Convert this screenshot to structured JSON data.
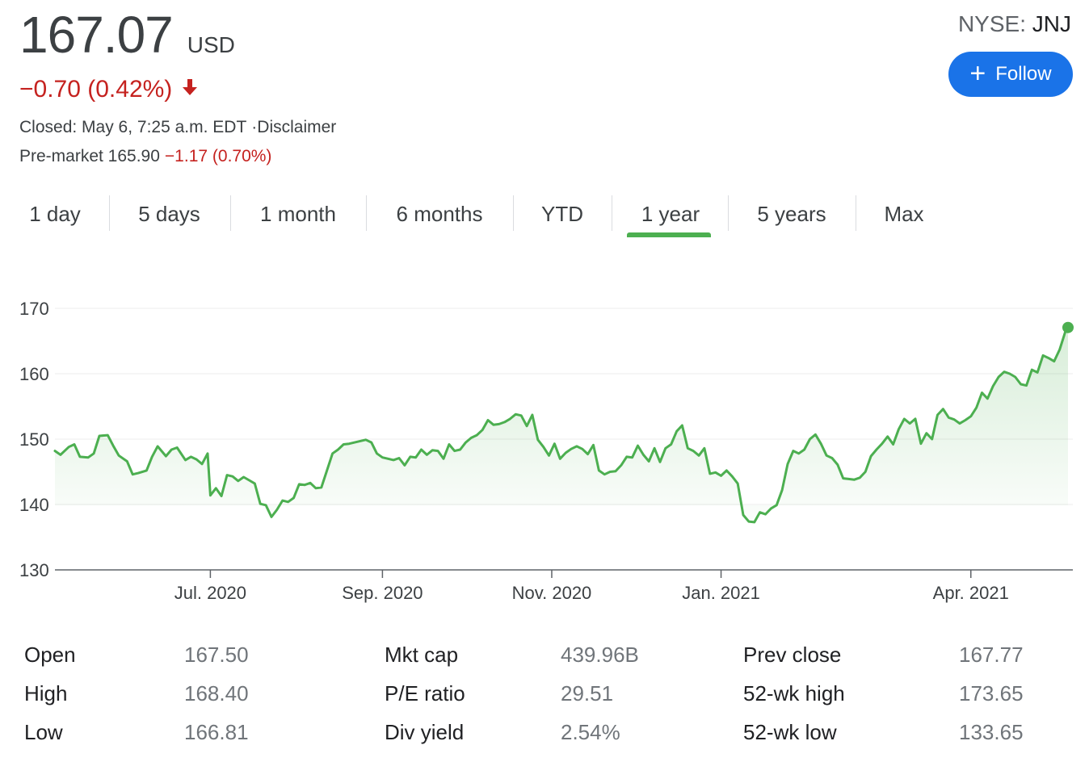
{
  "quote": {
    "price": "167.07",
    "currency": "USD",
    "change": "−0.70 (0.42%)",
    "closed_text": "Closed: May 6, 7:25 a.m. EDT",
    "disclaimer": "·Disclaimer",
    "premarket_label": "Pre-market 165.90",
    "premarket_change": "−1.17 (0.70%)",
    "exchange": "NYSE: ",
    "symbol": "JNJ",
    "follow_label": "Follow",
    "down_color": "#c5221f",
    "accent_color": "#1a73e8"
  },
  "tabs": [
    {
      "label": "1 day",
      "active": false
    },
    {
      "label": "5 days",
      "active": false
    },
    {
      "label": "1 month",
      "active": false
    },
    {
      "label": "6 months",
      "active": false
    },
    {
      "label": "YTD",
      "active": false
    },
    {
      "label": "1 year",
      "active": true
    },
    {
      "label": "5 years",
      "active": false
    },
    {
      "label": "Max",
      "active": false
    }
  ],
  "chart_data": {
    "type": "area",
    "line_color": "#4caf50",
    "ylim": [
      130,
      170
    ],
    "yticks": [
      "170",
      "160",
      "150",
      "140",
      "130"
    ],
    "xticks": [
      {
        "label": "Jul. 2020",
        "x": "2020-07-01"
      },
      {
        "label": "Sep. 2020",
        "x": "2020-09-01"
      },
      {
        "label": "Nov. 2020",
        "x": "2020-11-01"
      },
      {
        "label": "Jan. 2021",
        "x": "2021-01-01"
      },
      {
        "label": "Apr. 2021",
        "x": "2021-04-01"
      }
    ],
    "xlim": [
      "2020-05-06",
      "2021-05-06"
    ],
    "grid": true,
    "series": [
      {
        "values": [
          [
            "2020-05-06",
            148.2
          ],
          [
            "2020-05-08",
            147.6
          ],
          [
            "2020-05-11",
            148.8
          ],
          [
            "2020-05-13",
            149.2
          ],
          [
            "2020-05-15",
            147.3
          ],
          [
            "2020-05-18",
            147.2
          ],
          [
            "2020-05-20",
            147.8
          ],
          [
            "2020-05-22",
            150.5
          ],
          [
            "2020-05-25",
            150.6
          ],
          [
            "2020-05-27",
            149.0
          ],
          [
            "2020-05-29",
            147.5
          ],
          [
            "2020-06-01",
            146.6
          ],
          [
            "2020-06-03",
            144.6
          ],
          [
            "2020-06-05",
            144.8
          ],
          [
            "2020-06-08",
            145.2
          ],
          [
            "2020-06-10",
            147.3
          ],
          [
            "2020-06-12",
            148.9
          ],
          [
            "2020-06-15",
            147.4
          ],
          [
            "2020-06-17",
            148.4
          ],
          [
            "2020-06-19",
            148.7
          ],
          [
            "2020-06-22",
            146.8
          ],
          [
            "2020-06-24",
            147.3
          ],
          [
            "2020-06-26",
            146.9
          ],
          [
            "2020-06-28",
            146.2
          ],
          [
            "2020-06-30",
            147.8
          ],
          [
            "2020-07-01",
            141.4
          ],
          [
            "2020-07-03",
            142.5
          ],
          [
            "2020-07-05",
            141.3
          ],
          [
            "2020-07-07",
            144.5
          ],
          [
            "2020-07-09",
            144.3
          ],
          [
            "2020-07-11",
            143.6
          ],
          [
            "2020-07-13",
            144.2
          ],
          [
            "2020-07-15",
            143.7
          ],
          [
            "2020-07-17",
            143.2
          ],
          [
            "2020-07-19",
            140.1
          ],
          [
            "2020-07-21",
            139.9
          ],
          [
            "2020-07-23",
            138.1
          ],
          [
            "2020-07-25",
            139.2
          ],
          [
            "2020-07-27",
            140.6
          ],
          [
            "2020-07-29",
            140.4
          ],
          [
            "2020-07-31",
            141.0
          ],
          [
            "2020-08-02",
            143.1
          ],
          [
            "2020-08-04",
            143.0
          ],
          [
            "2020-08-06",
            143.3
          ],
          [
            "2020-08-08",
            142.5
          ],
          [
            "2020-08-10",
            142.6
          ],
          [
            "2020-08-12",
            145.2
          ],
          [
            "2020-08-14",
            147.8
          ],
          [
            "2020-08-16",
            148.4
          ],
          [
            "2020-08-18",
            149.2
          ],
          [
            "2020-08-20",
            149.3
          ],
          [
            "2020-08-22",
            149.5
          ],
          [
            "2020-08-24",
            149.7
          ],
          [
            "2020-08-26",
            149.9
          ],
          [
            "2020-08-28",
            149.5
          ],
          [
            "2020-08-30",
            147.8
          ],
          [
            "2020-09-01",
            147.2
          ],
          [
            "2020-09-03",
            147.0
          ],
          [
            "2020-09-05",
            146.8
          ],
          [
            "2020-09-07",
            147.1
          ],
          [
            "2020-09-09",
            146.0
          ],
          [
            "2020-09-11",
            147.3
          ],
          [
            "2020-09-13",
            147.2
          ],
          [
            "2020-09-15",
            148.4
          ],
          [
            "2020-09-17",
            147.6
          ],
          [
            "2020-09-19",
            148.3
          ],
          [
            "2020-09-21",
            148.2
          ],
          [
            "2020-09-23",
            147.0
          ],
          [
            "2020-09-25",
            149.2
          ],
          [
            "2020-09-27",
            148.2
          ],
          [
            "2020-09-29",
            148.4
          ],
          [
            "2020-10-01",
            149.5
          ],
          [
            "2020-10-03",
            150.2
          ],
          [
            "2020-10-05",
            150.6
          ],
          [
            "2020-10-07",
            151.4
          ],
          [
            "2020-10-09",
            152.9
          ],
          [
            "2020-10-11",
            152.2
          ],
          [
            "2020-10-13",
            152.3
          ],
          [
            "2020-10-15",
            152.6
          ],
          [
            "2020-10-17",
            153.1
          ],
          [
            "2020-10-19",
            153.8
          ],
          [
            "2020-10-21",
            153.6
          ],
          [
            "2020-10-23",
            152.0
          ],
          [
            "2020-10-25",
            153.7
          ],
          [
            "2020-10-27",
            149.9
          ],
          [
            "2020-10-29",
            148.8
          ],
          [
            "2020-10-31",
            147.5
          ],
          [
            "2020-11-02",
            149.3
          ],
          [
            "2020-11-04",
            147.0
          ],
          [
            "2020-11-06",
            147.9
          ],
          [
            "2020-11-08",
            148.5
          ],
          [
            "2020-11-10",
            148.9
          ],
          [
            "2020-11-12",
            148.5
          ],
          [
            "2020-11-14",
            147.7
          ],
          [
            "2020-11-16",
            149.1
          ],
          [
            "2020-11-18",
            145.2
          ],
          [
            "2020-11-20",
            144.6
          ],
          [
            "2020-11-22",
            145.0
          ],
          [
            "2020-11-24",
            145.1
          ],
          [
            "2020-11-26",
            146.0
          ],
          [
            "2020-11-28",
            147.3
          ],
          [
            "2020-11-30",
            147.2
          ],
          [
            "2020-12-02",
            149.0
          ],
          [
            "2020-12-04",
            147.6
          ],
          [
            "2020-12-06",
            146.6
          ],
          [
            "2020-12-08",
            148.6
          ],
          [
            "2020-12-10",
            146.5
          ],
          [
            "2020-12-12",
            148.6
          ],
          [
            "2020-12-14",
            149.2
          ],
          [
            "2020-12-16",
            151.2
          ],
          [
            "2020-12-18",
            152.1
          ],
          [
            "2020-12-20",
            148.6
          ],
          [
            "2020-12-22",
            148.2
          ],
          [
            "2020-12-24",
            147.5
          ],
          [
            "2020-12-26",
            148.6
          ],
          [
            "2020-12-28",
            144.7
          ],
          [
            "2020-12-30",
            144.9
          ],
          [
            "2021-01-01",
            144.4
          ],
          [
            "2021-01-03",
            145.2
          ],
          [
            "2021-01-05",
            144.3
          ],
          [
            "2021-01-07",
            143.2
          ],
          [
            "2021-01-09",
            138.4
          ],
          [
            "2021-01-11",
            137.4
          ],
          [
            "2021-01-13",
            137.3
          ],
          [
            "2021-01-15",
            138.8
          ],
          [
            "2021-01-17",
            138.5
          ],
          [
            "2021-01-19",
            139.4
          ],
          [
            "2021-01-21",
            139.9
          ],
          [
            "2021-01-23",
            142.2
          ],
          [
            "2021-01-25",
            146.2
          ],
          [
            "2021-01-27",
            148.2
          ],
          [
            "2021-01-29",
            147.8
          ],
          [
            "2021-01-31",
            148.4
          ],
          [
            "2021-02-02",
            150.0
          ],
          [
            "2021-02-04",
            150.7
          ],
          [
            "2021-02-06",
            149.3
          ],
          [
            "2021-02-08",
            147.5
          ],
          [
            "2021-02-10",
            147.1
          ],
          [
            "2021-02-12",
            146.1
          ],
          [
            "2021-02-14",
            144.0
          ],
          [
            "2021-02-16",
            143.9
          ],
          [
            "2021-02-18",
            143.8
          ],
          [
            "2021-02-20",
            144.1
          ],
          [
            "2021-02-22",
            145.0
          ],
          [
            "2021-02-24",
            147.4
          ],
          [
            "2021-02-26",
            148.4
          ],
          [
            "2021-02-28",
            149.3
          ],
          [
            "2021-03-02",
            150.4
          ],
          [
            "2021-03-04",
            149.2
          ],
          [
            "2021-03-06",
            151.5
          ],
          [
            "2021-03-08",
            153.1
          ],
          [
            "2021-03-10",
            152.4
          ],
          [
            "2021-03-12",
            153.1
          ],
          [
            "2021-03-14",
            149.3
          ],
          [
            "2021-03-16",
            150.9
          ],
          [
            "2021-03-18",
            150.0
          ],
          [
            "2021-03-20",
            153.7
          ],
          [
            "2021-03-22",
            154.6
          ],
          [
            "2021-03-24",
            153.3
          ],
          [
            "2021-03-26",
            153.0
          ],
          [
            "2021-03-28",
            152.4
          ],
          [
            "2021-03-30",
            152.9
          ],
          [
            "2021-04-01",
            153.5
          ],
          [
            "2021-04-03",
            154.8
          ],
          [
            "2021-04-05",
            157.1
          ],
          [
            "2021-04-07",
            156.2
          ],
          [
            "2021-04-09",
            158.1
          ],
          [
            "2021-04-11",
            159.5
          ],
          [
            "2021-04-13",
            160.3
          ],
          [
            "2021-04-15",
            160.0
          ],
          [
            "2021-04-17",
            159.5
          ],
          [
            "2021-04-19",
            158.4
          ],
          [
            "2021-04-21",
            158.2
          ],
          [
            "2021-04-23",
            160.6
          ],
          [
            "2021-04-25",
            160.2
          ],
          [
            "2021-04-27",
            162.8
          ],
          [
            "2021-04-29",
            162.4
          ],
          [
            "2021-05-01",
            161.9
          ],
          [
            "2021-05-03",
            163.7
          ],
          [
            "2021-05-05",
            166.4
          ],
          [
            "2021-05-06",
            167.07
          ]
        ]
      }
    ]
  },
  "stats": [
    {
      "label": "Open",
      "value": "167.50"
    },
    {
      "label": "High",
      "value": "168.40"
    },
    {
      "label": "Low",
      "value": "166.81"
    },
    {
      "label": "Mkt cap",
      "value": "439.96B"
    },
    {
      "label": "P/E ratio",
      "value": "29.51"
    },
    {
      "label": "Div yield",
      "value": "2.54%"
    },
    {
      "label": "Prev close",
      "value": "167.77"
    },
    {
      "label": "52-wk high",
      "value": "173.65"
    },
    {
      "label": "52-wk low",
      "value": "133.65"
    }
  ]
}
